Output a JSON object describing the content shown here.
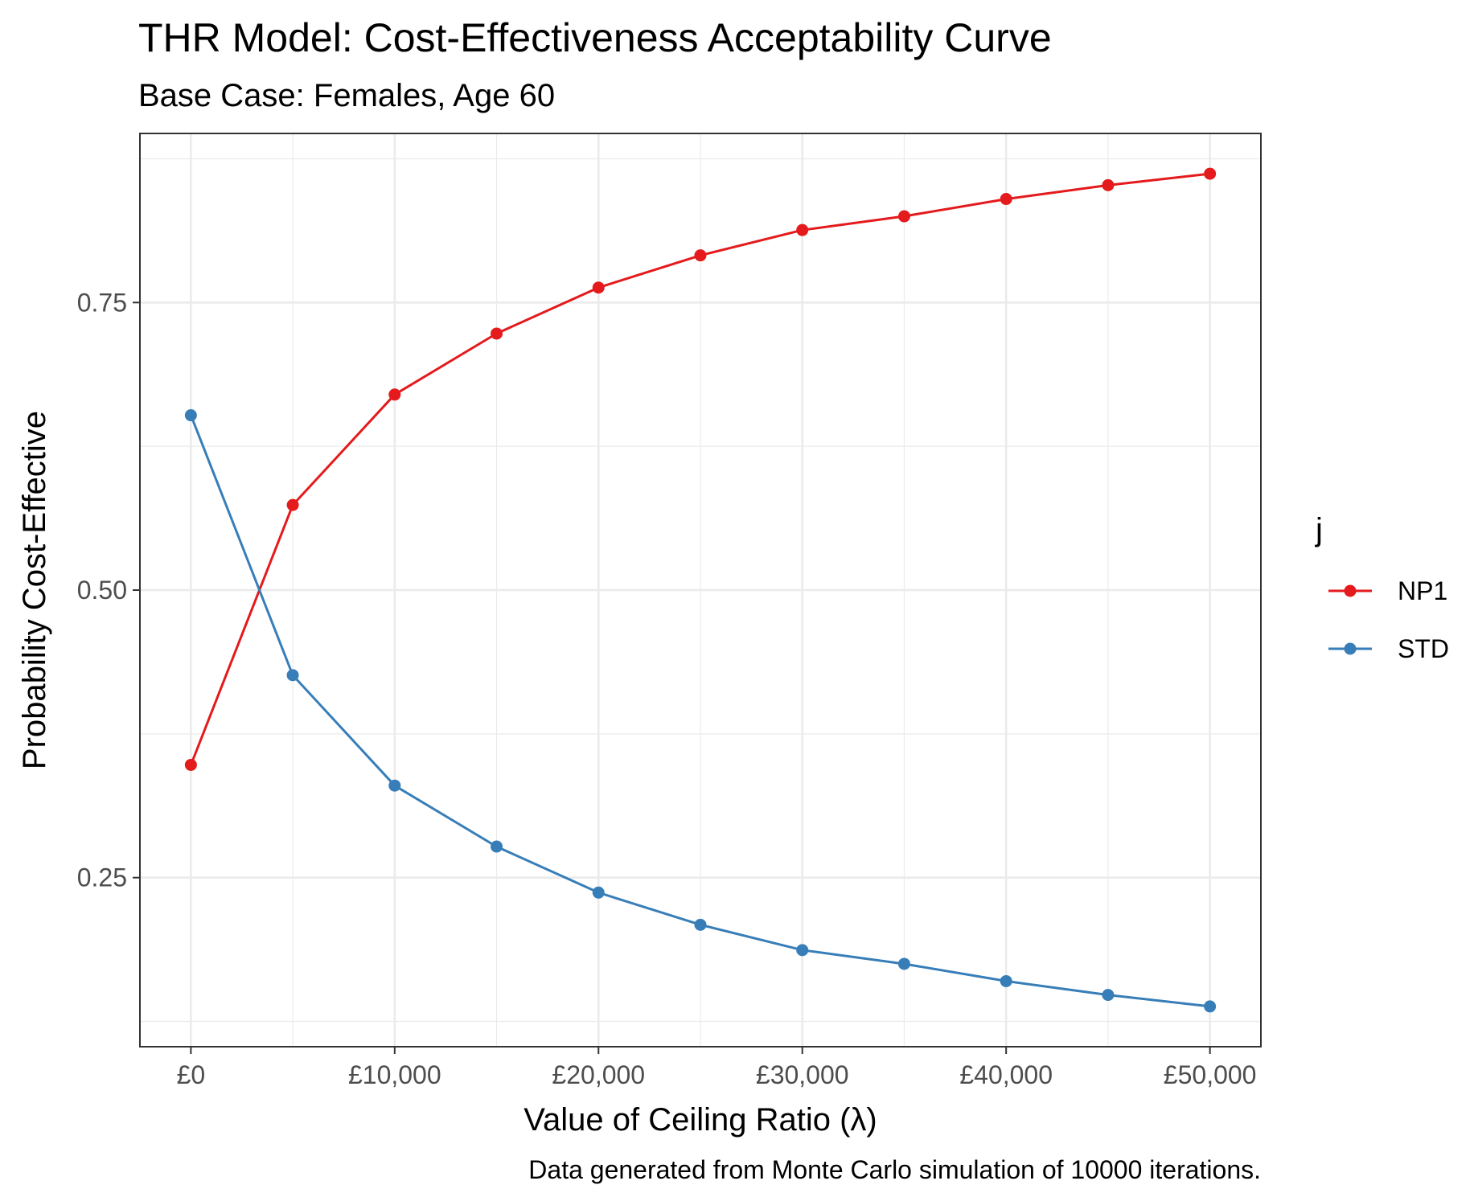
{
  "chart_data": {
    "type": "line",
    "title": "THR Model: Cost-Effectiveness Acceptability Curve",
    "subtitle": "Base Case: Females, Age 60",
    "xlabel": "Value of Ceiling Ratio (λ)",
    "ylabel": "Probability Cost-Effective",
    "caption": "Data generated from Monte Carlo simulation of 10000 iterations.",
    "x": [
      0,
      5000,
      10000,
      15000,
      20000,
      25000,
      30000,
      35000,
      40000,
      45000,
      50000
    ],
    "x_ticks": [
      0,
      10000,
      20000,
      30000,
      40000,
      50000
    ],
    "x_tick_labels": [
      "£0",
      "£10,000",
      "£20,000",
      "£30,000",
      "£40,000",
      "£50,000"
    ],
    "y_ticks": [
      0.25,
      0.5,
      0.75
    ],
    "y_tick_labels": [
      "0.25",
      "0.50",
      "0.75"
    ],
    "xlim": [
      -2500,
      52500
    ],
    "ylim": [
      0.103,
      0.897
    ],
    "grid": true,
    "legend": {
      "title": "j",
      "position": "right"
    },
    "series": [
      {
        "name": "NP1",
        "color": "#e41a1c",
        "values": [
          0.348,
          0.574,
          0.67,
          0.723,
          0.763,
          0.791,
          0.813,
          0.825,
          0.84,
          0.852,
          0.862
        ]
      },
      {
        "name": "STD",
        "color": "#377eb8",
        "values": [
          0.652,
          0.426,
          0.33,
          0.277,
          0.237,
          0.209,
          0.187,
          0.175,
          0.16,
          0.148,
          0.138
        ]
      }
    ]
  }
}
